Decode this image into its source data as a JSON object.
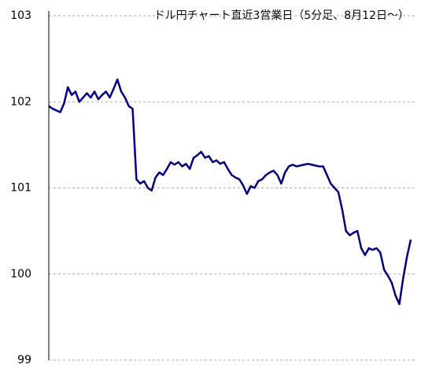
{
  "chart_data": {
    "type": "line",
    "title": "ドル円チャート直近3営業日（5分足、8月12日～）",
    "categories": [
      null,
      null,
      null,
      null,
      null,
      null,
      null,
      null,
      null,
      null,
      null,
      null,
      null,
      null,
      null,
      null,
      null,
      null,
      null,
      null,
      null,
      null,
      null,
      null,
      null,
      null,
      null,
      null,
      null,
      null,
      null,
      null,
      null,
      null,
      null,
      null,
      null,
      null,
      null,
      null,
      null,
      null,
      null,
      null,
      null,
      null,
      null,
      null,
      null,
      null,
      null,
      null,
      null,
      null,
      null,
      null,
      null,
      null,
      null,
      null,
      null,
      null,
      null,
      null,
      null,
      null,
      null,
      null,
      null,
      null,
      null,
      null,
      null,
      null,
      null,
      null,
      null,
      null,
      null,
      null,
      null,
      null,
      null,
      null,
      null,
      null,
      null,
      null,
      null,
      null,
      null,
      null,
      null,
      null,
      null,
      null
    ],
    "values": [
      101.95,
      101.92,
      101.9,
      101.88,
      101.98,
      102.17,
      102.08,
      102.12,
      102.0,
      102.05,
      102.1,
      102.05,
      102.12,
      102.03,
      102.08,
      102.12,
      102.05,
      102.15,
      102.26,
      102.12,
      102.05,
      101.95,
      101.92,
      101.1,
      101.05,
      101.08,
      101.0,
      100.97,
      101.12,
      101.18,
      101.15,
      101.22,
      101.3,
      101.27,
      101.3,
      101.25,
      101.28,
      101.22,
      101.35,
      101.38,
      101.42,
      101.35,
      101.37,
      101.3,
      101.32,
      101.28,
      101.3,
      101.22,
      101.15,
      101.12,
      101.1,
      101.03,
      100.93,
      101.02,
      101.0,
      101.08,
      101.1,
      101.15,
      101.18,
      101.2,
      101.15,
      101.05,
      101.18,
      101.25,
      101.27,
      101.25,
      101.26,
      101.27,
      101.28,
      101.27,
      101.26,
      101.25,
      101.25,
      101.15,
      101.05,
      101.0,
      100.95,
      100.75,
      100.5,
      100.45,
      100.48,
      100.5,
      100.3,
      100.22,
      100.3,
      100.28,
      100.3,
      100.25,
      100.05,
      99.98,
      99.9,
      99.75,
      99.65,
      99.95,
      100.2,
      100.4
    ],
    "color": "#000080",
    "ylim": [
      99,
      103
    ],
    "yticks": [
      99,
      100,
      101,
      102,
      103
    ],
    "grid": true
  }
}
